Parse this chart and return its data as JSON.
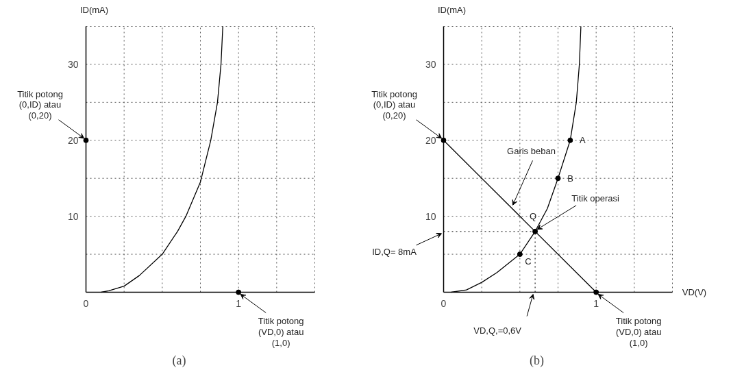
{
  "chart_data": [
    {
      "type": "line",
      "title": "(a)",
      "ylabel": "ID(mA)",
      "xlim": [
        0,
        1.5
      ],
      "ylim": [
        0,
        35
      ],
      "xticks": [
        0,
        {
          "value": 0.25,
          "label": null
        },
        {
          "value": 0.5,
          "label": null
        },
        {
          "value": 0.75,
          "label": null
        },
        1,
        {
          "value": 1.25,
          "label": null
        },
        {
          "value": 1.5,
          "label": null
        }
      ],
      "yticks": [
        {
          "value": 0,
          "label": null
        },
        {
          "value": 5,
          "label": null
        },
        10,
        {
          "value": 15,
          "label": null
        },
        20,
        {
          "value": 25,
          "label": null
        },
        30,
        {
          "value": 35,
          "label": null
        }
      ],
      "grid": true,
      "series": [
        {
          "color": "#000000",
          "x": [
            0.1,
            0.15,
            0.25,
            0.35,
            0.5,
            0.6,
            0.655,
            0.75,
            0.818,
            0.862,
            0.885,
            0.897
          ],
          "values": [
            0,
            0.2,
            0.8,
            2.2,
            5,
            8,
            10,
            14.5,
            20,
            25,
            30,
            35
          ]
        },
        {
          "type": "scatter",
          "marker": "circle",
          "color": "#000000",
          "x": [
            0,
            1
          ],
          "values": [
            20,
            0
          ]
        }
      ],
      "annotations": [
        {
          "text": "Titik potong\n(0,ID) atau\n(0,20)",
          "x": 0,
          "y": 20
        },
        {
          "text": "Titik potong\n(VD,0) atau\n(1,0)",
          "x": 1,
          "y": 0
        }
      ]
    },
    {
      "type": "line",
      "title": "(b)",
      "ylabel": "ID(mA)",
      "xlabel": "VD(V)",
      "xlim": [
        0,
        1.5
      ],
      "ylim": [
        0,
        35
      ],
      "xticks": [
        0,
        {
          "value": 0.25,
          "label": null
        },
        {
          "value": 0.5,
          "label": null
        },
        {
          "value": 0.75,
          "label": null
        },
        1,
        {
          "value": 1.25,
          "label": null
        },
        {
          "value": 1.5,
          "label": null
        }
      ],
      "yticks": [
        {
          "value": 0,
          "label": null
        },
        {
          "value": 5,
          "label": null
        },
        10,
        {
          "value": 15,
          "label": null
        },
        20,
        {
          "value": 25,
          "label": null
        },
        30,
        {
          "value": 35,
          "label": null
        }
      ],
      "grid": true,
      "series": [
        {
          "color": "#000000",
          "x": [
            0.05,
            0.15,
            0.25,
            0.35,
            0.5,
            0.6,
            0.68,
            0.75,
            0.83,
            0.87,
            0.89,
            0.9
          ],
          "values": [
            0,
            0.3,
            1.3,
            2.6,
            5,
            8,
            11,
            15,
            20,
            25,
            30,
            35
          ]
        },
        {
          "color": "#000000",
          "x": [
            0,
            1
          ],
          "values": [
            20,
            0
          ]
        },
        {
          "type": "scatter",
          "marker": "circle",
          "color": "#000000",
          "x": [
            0,
            1,
            0.83,
            0.75,
            0.5,
            0.6
          ],
          "values": [
            20,
            0,
            20,
            15,
            5,
            8
          ]
        }
      ],
      "ref_lines": [
        {
          "axis": "y",
          "value": 8,
          "label": "ID,Q= 8mA",
          "line_style": "dotted"
        },
        {
          "axis": "x",
          "value": 0.6,
          "label": "VD,Q,=0,6V",
          "line_style": "dotted"
        }
      ],
      "annotations": [
        {
          "text": "Titik potong\n(0,ID) atau\n(0,20)",
          "x": 0,
          "y": 20
        },
        {
          "text": "Garis beban",
          "x": 0.44,
          "y": 11.2
        },
        {
          "text": "A",
          "x": 0.83,
          "y": 20
        },
        {
          "text": "B",
          "x": 0.75,
          "y": 15
        },
        {
          "text": "Titik operasi",
          "x": 0.6,
          "y": 8
        },
        {
          "text": "Q",
          "x": 0.6,
          "y": 8
        },
        {
          "text": "C",
          "x": 0.5,
          "y": 5
        },
        {
          "text": "Titik potong\n(VD,0) atau\n(1,0)",
          "x": 1,
          "y": 0
        }
      ]
    }
  ]
}
